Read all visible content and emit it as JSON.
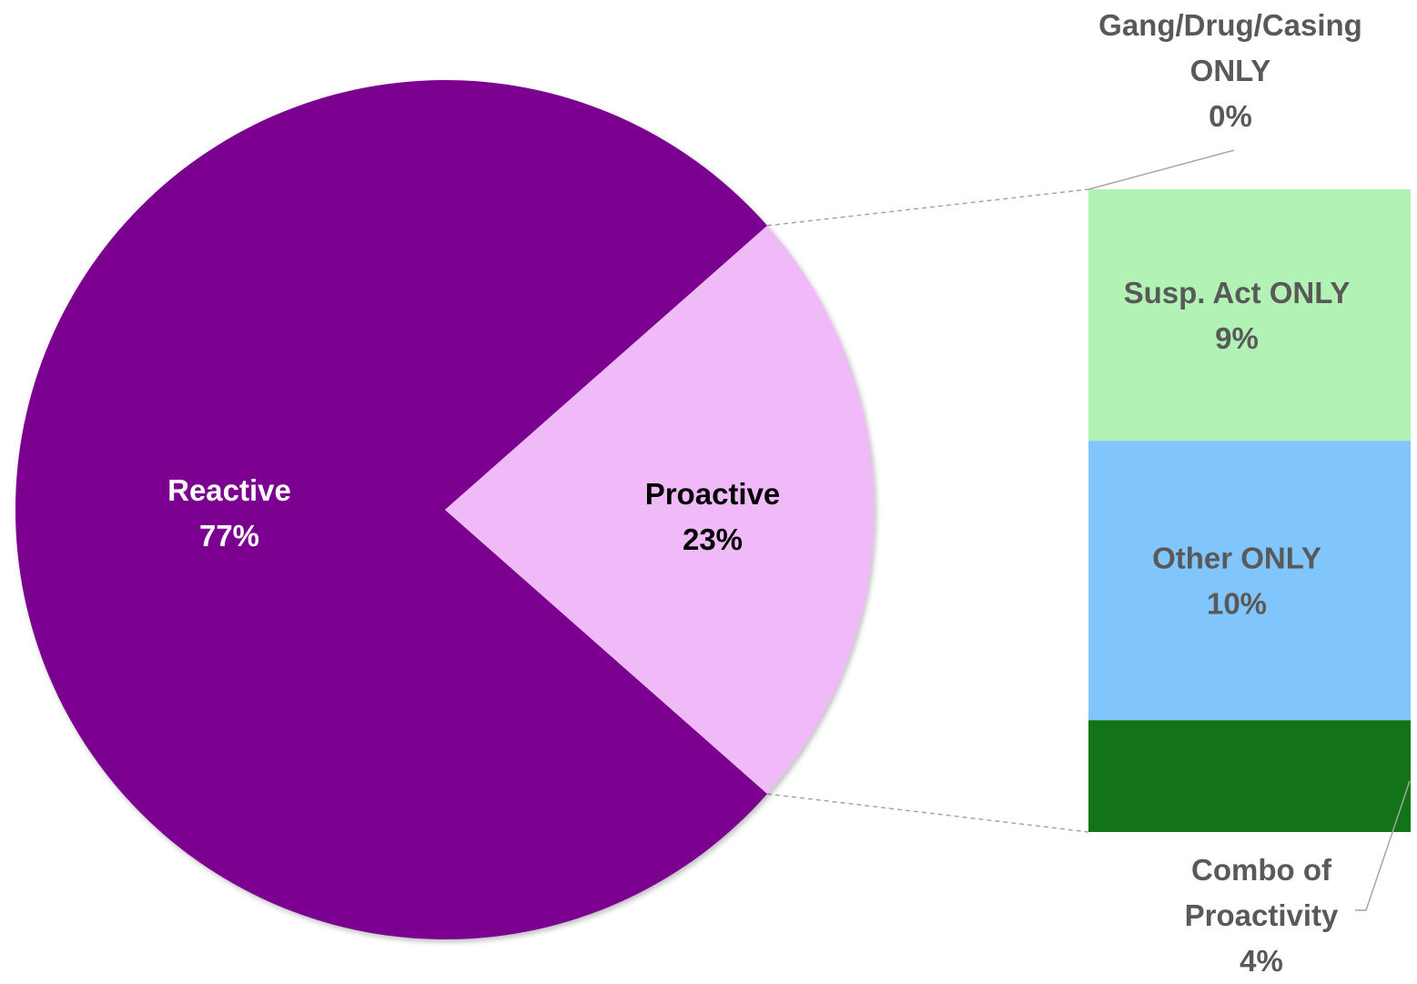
{
  "chart_data": {
    "type": "pie",
    "title": "",
    "pie": {
      "slices": [
        {
          "label": "Reactive",
          "value": 77,
          "value_label": "77%",
          "color": "#7b058f",
          "label_color": "#ffffff"
        },
        {
          "label": "Proactive",
          "value": 23,
          "value_label": "23%",
          "color": "#f0b9f7",
          "label_color": "#000000"
        }
      ]
    },
    "breakdown": {
      "of": "Proactive",
      "segments": [
        {
          "label": "Gang/Drug/Casing ONLY",
          "value": 0,
          "value_label": "0%",
          "color": "#d6f7d0",
          "label_color": "#595959"
        },
        {
          "label": "Susp. Act ONLY",
          "value": 9,
          "value_label": "9%",
          "color": "#b3f2b5",
          "label_color": "#595959"
        },
        {
          "label": "Other ONLY",
          "value": 10,
          "value_label": "10%",
          "color": "#80c6fc",
          "label_color": "#595959"
        },
        {
          "label": "Combo of Proactivity",
          "value": 4,
          "value_label": "4%",
          "color": "#137317",
          "label_color": "#595959"
        }
      ]
    },
    "connector_color": "#a6a6a6",
    "legend": "none"
  }
}
